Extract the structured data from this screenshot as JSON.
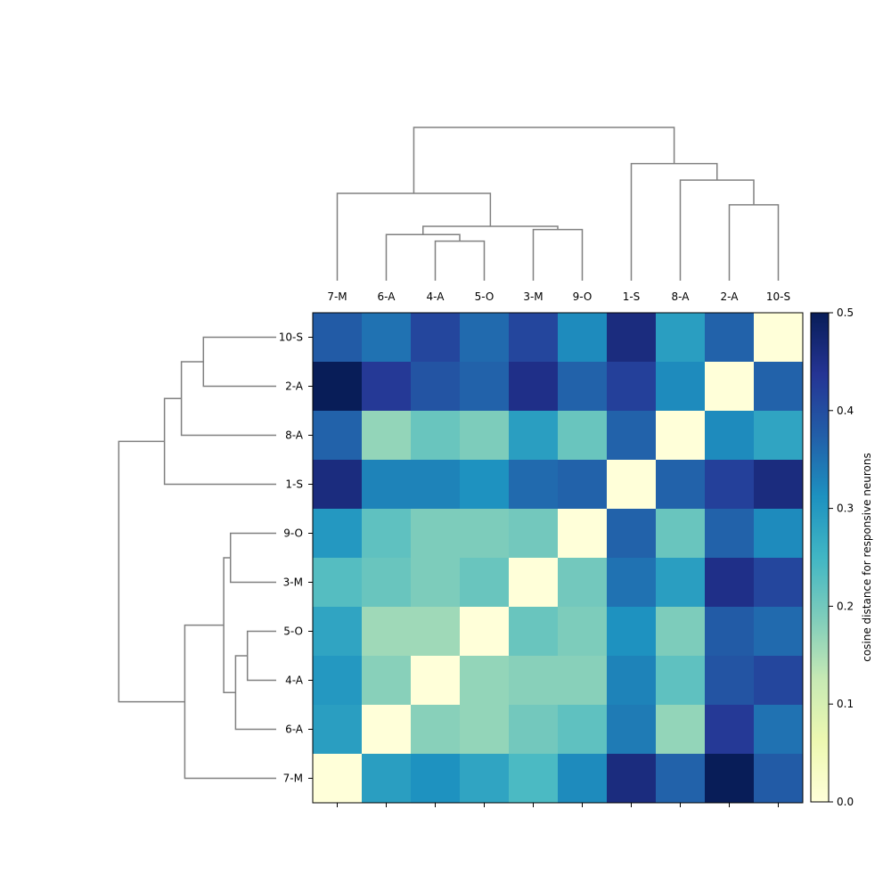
{
  "chart_data": {
    "type": "heatmap",
    "title": "",
    "xlabel": "",
    "ylabel": "",
    "x_labels": [
      "7-M",
      "6-A",
      "4-A",
      "5-O",
      "3-M",
      "9-O",
      "1-S",
      "8-A",
      "2-A",
      "10-S"
    ],
    "y_labels": [
      "10-S",
      "2-A",
      "8-A",
      "1-S",
      "9-O",
      "3-M",
      "5-O",
      "4-A",
      "6-A",
      "7-M"
    ],
    "values": [
      [
        0.38,
        0.35,
        0.41,
        0.36,
        0.41,
        0.32,
        0.46,
        0.29,
        0.37,
        0.0
      ],
      [
        0.5,
        0.43,
        0.39,
        0.37,
        0.45,
        0.37,
        0.42,
        0.32,
        0.0,
        0.37
      ],
      [
        0.37,
        0.17,
        0.21,
        0.19,
        0.29,
        0.21,
        0.37,
        0.0,
        0.32,
        0.28
      ],
      [
        0.46,
        0.33,
        0.33,
        0.31,
        0.36,
        0.37,
        0.0,
        0.37,
        0.42,
        0.46
      ],
      [
        0.3,
        0.22,
        0.19,
        0.19,
        0.2,
        0.0,
        0.37,
        0.21,
        0.37,
        0.32
      ],
      [
        0.23,
        0.21,
        0.19,
        0.21,
        0.0,
        0.2,
        0.35,
        0.29,
        0.45,
        0.41
      ],
      [
        0.28,
        0.16,
        0.16,
        0.0,
        0.21,
        0.19,
        0.31,
        0.19,
        0.38,
        0.36
      ],
      [
        0.3,
        0.18,
        0.0,
        0.17,
        0.18,
        0.18,
        0.33,
        0.22,
        0.39,
        0.41
      ],
      [
        0.29,
        0.0,
        0.18,
        0.17,
        0.2,
        0.22,
        0.34,
        0.17,
        0.43,
        0.35
      ],
      [
        0.0,
        0.29,
        0.31,
        0.28,
        0.24,
        0.32,
        0.46,
        0.37,
        0.5,
        0.38
      ]
    ],
    "colormap": "YlGnBu",
    "colorbar": {
      "label": "cosine distance for responsive neurons",
      "range": [
        0.0,
        0.5
      ],
      "ticks": [
        "0.0",
        "0.1",
        "0.2",
        "0.3",
        "0.4",
        "0.5"
      ]
    },
    "dendrogram_color": "#808080",
    "col_dendrogram": {
      "merges": [
        {
          "a": "4-A",
          "b": "5-O",
          "height": 0.24
        },
        {
          "a": "6-A",
          "b": "m:4-A|5-O",
          "height": 0.28
        },
        {
          "a": "3-M",
          "b": "9-O",
          "height": 0.31
        },
        {
          "a": "m:6-A|4-A|5-O",
          "b": "m:3-M|9-O",
          "height": 0.33
        },
        {
          "a": "7-M",
          "b": "m:6-A|4-A|5-O|3-M|9-O",
          "height": 0.53
        },
        {
          "a": "2-A",
          "b": "10-S",
          "height": 0.46
        },
        {
          "a": "8-A",
          "b": "m:2-A|10-S",
          "height": 0.61
        },
        {
          "a": "1-S",
          "b": "m:8-A|2-A|10-S",
          "height": 0.71
        },
        {
          "a": "m:7-M|6-A|4-A|5-O|3-M|9-O",
          "b": "m:1-S|8-A|2-A|10-S",
          "height": 0.93
        }
      ],
      "max_height": 1.0
    },
    "row_dendrogram": {
      "merges": [
        {
          "a": "5-O",
          "b": "4-A",
          "height": 0.17
        },
        {
          "a": "m:5-O|4-A",
          "b": "6-A",
          "height": 0.24
        },
        {
          "a": "9-O",
          "b": "3-M",
          "height": 0.27
        },
        {
          "a": "m:9-O|3-M",
          "b": "m:5-O|4-A|6-A",
          "height": 0.31
        },
        {
          "a": "m:9-O|3-M|5-O|4-A|6-A",
          "b": "7-M",
          "height": 0.54
        },
        {
          "a": "10-S",
          "b": "2-A",
          "height": 0.43
        },
        {
          "a": "m:10-S|2-A",
          "b": "8-A",
          "height": 0.56
        },
        {
          "a": "m:10-S|2-A|8-A",
          "b": "1-S",
          "height": 0.66
        },
        {
          "a": "m:10-S|2-A|8-A|1-S",
          "b": "m:9-O|3-M|5-O|4-A|6-A|7-M",
          "height": 0.93
        }
      ],
      "max_height": 1.0
    }
  }
}
